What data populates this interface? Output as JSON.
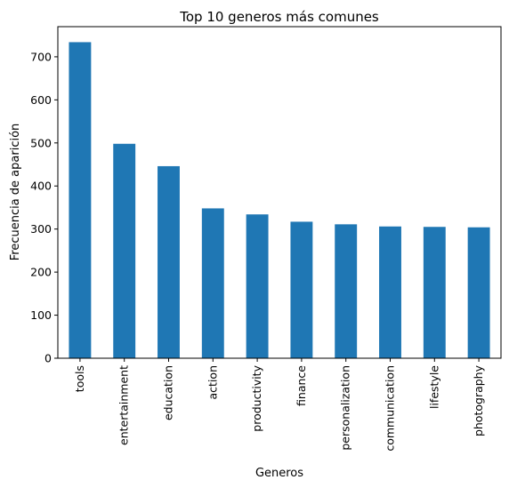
{
  "chart_data": {
    "type": "bar",
    "title": "Top 10 generos más comunes",
    "xlabel": "Generos",
    "ylabel": "Frecuencia de aparición",
    "categories": [
      "tools",
      "entertainment",
      "education",
      "action",
      "productivity",
      "finance",
      "personalization",
      "communication",
      "lifestyle",
      "photography"
    ],
    "values": [
      734,
      498,
      446,
      348,
      334,
      317,
      311,
      306,
      305,
      304
    ],
    "ylim": [
      0,
      770
    ],
    "yticks": [
      0,
      100,
      200,
      300,
      400,
      500,
      600,
      700
    ],
    "bar_color": "#1f77b4",
    "grid": false,
    "legend": "none"
  }
}
